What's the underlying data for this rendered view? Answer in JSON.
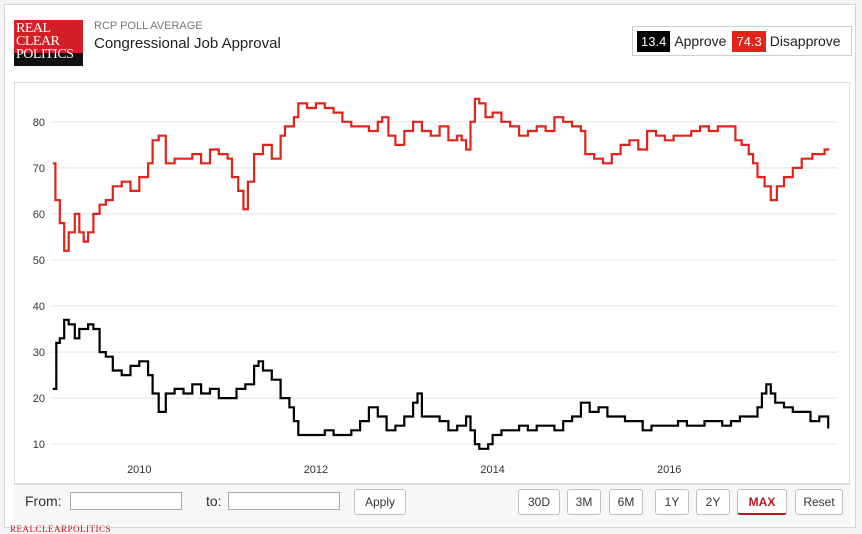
{
  "header": {
    "logo_lines": [
      "REAL",
      "CLEAR",
      "POLITICS"
    ],
    "kicker": "RCP POLL AVERAGE",
    "title": "Congressional Job Approval"
  },
  "legend": {
    "approve_value": "13.4",
    "approve_label": "Approve",
    "disapprove_value": "74.3",
    "disapprove_label": "Disapprove"
  },
  "controls": {
    "from_label": "From:",
    "to_label": "to:",
    "from_value": "",
    "to_value": "",
    "apply_label": "Apply",
    "ranges": [
      "30D",
      "3M",
      "6M",
      "1Y",
      "2Y",
      "MAX"
    ],
    "active_range": "MAX",
    "reset_label": "Reset"
  },
  "footer": {
    "brand": "REALCLEARPOLITICS"
  },
  "chart_data": {
    "type": "line",
    "title": "",
    "xlabel": "",
    "ylabel": "",
    "x_ticks": [
      "2010",
      "2012",
      "2014",
      "2016"
    ],
    "y_ticks": [
      10,
      20,
      30,
      40,
      50,
      60,
      70,
      80
    ],
    "ylim": [
      2,
      88
    ],
    "xlim": [
      2009.0,
      2017.9
    ],
    "grid": "horizontal",
    "series": [
      {
        "name": "Disapprove",
        "color": "#e2231a",
        "points": [
          [
            2009.02,
            71
          ],
          [
            2009.05,
            63
          ],
          [
            2009.1,
            58
          ],
          [
            2009.15,
            52
          ],
          [
            2009.2,
            56
          ],
          [
            2009.27,
            60
          ],
          [
            2009.32,
            56
          ],
          [
            2009.37,
            54
          ],
          [
            2009.42,
            56
          ],
          [
            2009.48,
            60
          ],
          [
            2009.55,
            62
          ],
          [
            2009.62,
            63
          ],
          [
            2009.7,
            66
          ],
          [
            2009.8,
            67
          ],
          [
            2009.9,
            65
          ],
          [
            2010.0,
            68
          ],
          [
            2010.1,
            71
          ],
          [
            2010.15,
            76
          ],
          [
            2010.22,
            77
          ],
          [
            2010.3,
            71
          ],
          [
            2010.4,
            72
          ],
          [
            2010.5,
            72
          ],
          [
            2010.6,
            73
          ],
          [
            2010.7,
            71
          ],
          [
            2010.8,
            74
          ],
          [
            2010.9,
            73
          ],
          [
            2011.0,
            72
          ],
          [
            2011.05,
            68
          ],
          [
            2011.12,
            65
          ],
          [
            2011.18,
            61
          ],
          [
            2011.23,
            67
          ],
          [
            2011.3,
            73
          ],
          [
            2011.4,
            75
          ],
          [
            2011.5,
            72
          ],
          [
            2011.6,
            77
          ],
          [
            2011.65,
            79
          ],
          [
            2011.75,
            81
          ],
          [
            2011.8,
            84
          ],
          [
            2011.9,
            83
          ],
          [
            2012.0,
            84
          ],
          [
            2012.1,
            83
          ],
          [
            2012.2,
            82
          ],
          [
            2012.3,
            80
          ],
          [
            2012.4,
            79
          ],
          [
            2012.5,
            79
          ],
          [
            2012.6,
            78
          ],
          [
            2012.7,
            80
          ],
          [
            2012.75,
            81
          ],
          [
            2012.82,
            77
          ],
          [
            2012.9,
            75
          ],
          [
            2013.0,
            78
          ],
          [
            2013.1,
            80
          ],
          [
            2013.2,
            78
          ],
          [
            2013.3,
            77
          ],
          [
            2013.4,
            79
          ],
          [
            2013.5,
            76
          ],
          [
            2013.6,
            77
          ],
          [
            2013.65,
            76
          ],
          [
            2013.7,
            74
          ],
          [
            2013.75,
            80
          ],
          [
            2013.8,
            85
          ],
          [
            2013.85,
            84
          ],
          [
            2013.92,
            81
          ],
          [
            2014.0,
            82
          ],
          [
            2014.1,
            80
          ],
          [
            2014.2,
            79
          ],
          [
            2014.3,
            77
          ],
          [
            2014.4,
            78
          ],
          [
            2014.5,
            79
          ],
          [
            2014.6,
            78
          ],
          [
            2014.7,
            81
          ],
          [
            2014.8,
            80
          ],
          [
            2014.9,
            79
          ],
          [
            2015.0,
            78
          ],
          [
            2015.05,
            73
          ],
          [
            2015.15,
            72
          ],
          [
            2015.25,
            71
          ],
          [
            2015.35,
            73
          ],
          [
            2015.45,
            75
          ],
          [
            2015.55,
            76
          ],
          [
            2015.65,
            74
          ],
          [
            2015.75,
            78
          ],
          [
            2015.85,
            77
          ],
          [
            2015.95,
            76
          ],
          [
            2016.05,
            77
          ],
          [
            2016.15,
            77
          ],
          [
            2016.25,
            78
          ],
          [
            2016.35,
            79
          ],
          [
            2016.45,
            78
          ],
          [
            2016.55,
            79
          ],
          [
            2016.65,
            79
          ],
          [
            2016.75,
            76
          ],
          [
            2016.82,
            75
          ],
          [
            2016.9,
            73
          ],
          [
            2016.95,
            71
          ],
          [
            2017.0,
            68
          ],
          [
            2017.08,
            66
          ],
          [
            2017.15,
            63
          ],
          [
            2017.22,
            66
          ],
          [
            2017.3,
            68
          ],
          [
            2017.4,
            70
          ],
          [
            2017.5,
            72
          ],
          [
            2017.55,
            72
          ],
          [
            2017.62,
            73
          ],
          [
            2017.7,
            73
          ],
          [
            2017.76,
            74
          ],
          [
            2017.8,
            74.3
          ]
        ]
      },
      {
        "name": "Approve",
        "color": "#000000",
        "points": [
          [
            2009.02,
            22
          ],
          [
            2009.06,
            32
          ],
          [
            2009.1,
            33
          ],
          [
            2009.15,
            37
          ],
          [
            2009.2,
            36
          ],
          [
            2009.27,
            33
          ],
          [
            2009.32,
            35
          ],
          [
            2009.37,
            35
          ],
          [
            2009.42,
            36
          ],
          [
            2009.48,
            35
          ],
          [
            2009.55,
            30
          ],
          [
            2009.62,
            29
          ],
          [
            2009.7,
            26
          ],
          [
            2009.8,
            25
          ],
          [
            2009.9,
            27
          ],
          [
            2010.0,
            28
          ],
          [
            2010.1,
            25
          ],
          [
            2010.15,
            21
          ],
          [
            2010.22,
            17
          ],
          [
            2010.3,
            21
          ],
          [
            2010.4,
            22
          ],
          [
            2010.5,
            21
          ],
          [
            2010.6,
            23
          ],
          [
            2010.7,
            21
          ],
          [
            2010.8,
            22
          ],
          [
            2010.9,
            20
          ],
          [
            2011.0,
            20
          ],
          [
            2011.1,
            22
          ],
          [
            2011.2,
            23
          ],
          [
            2011.3,
            27
          ],
          [
            2011.35,
            28
          ],
          [
            2011.4,
            26
          ],
          [
            2011.5,
            24
          ],
          [
            2011.6,
            20
          ],
          [
            2011.7,
            18
          ],
          [
            2011.75,
            15
          ],
          [
            2011.8,
            12
          ],
          [
            2011.9,
            12
          ],
          [
            2012.0,
            12
          ],
          [
            2012.1,
            13
          ],
          [
            2012.2,
            12
          ],
          [
            2012.3,
            12
          ],
          [
            2012.4,
            13
          ],
          [
            2012.5,
            15
          ],
          [
            2012.6,
            18
          ],
          [
            2012.7,
            16
          ],
          [
            2012.8,
            13
          ],
          [
            2012.9,
            14
          ],
          [
            2013.0,
            16
          ],
          [
            2013.1,
            19
          ],
          [
            2013.15,
            21
          ],
          [
            2013.2,
            16
          ],
          [
            2013.3,
            16
          ],
          [
            2013.4,
            15
          ],
          [
            2013.5,
            13
          ],
          [
            2013.6,
            14
          ],
          [
            2013.7,
            16
          ],
          [
            2013.75,
            13
          ],
          [
            2013.8,
            10
          ],
          [
            2013.85,
            9
          ],
          [
            2013.95,
            10
          ],
          [
            2014.0,
            12
          ],
          [
            2014.1,
            13
          ],
          [
            2014.2,
            13
          ],
          [
            2014.3,
            14
          ],
          [
            2014.4,
            13
          ],
          [
            2014.5,
            14
          ],
          [
            2014.6,
            14
          ],
          [
            2014.7,
            13
          ],
          [
            2014.8,
            15
          ],
          [
            2014.9,
            16
          ],
          [
            2015.0,
            19
          ],
          [
            2015.1,
            17
          ],
          [
            2015.2,
            18
          ],
          [
            2015.3,
            16
          ],
          [
            2015.4,
            16
          ],
          [
            2015.5,
            15
          ],
          [
            2015.6,
            15
          ],
          [
            2015.7,
            13
          ],
          [
            2015.8,
            14
          ],
          [
            2015.9,
            14
          ],
          [
            2016.0,
            14
          ],
          [
            2016.1,
            15
          ],
          [
            2016.2,
            14
          ],
          [
            2016.3,
            14
          ],
          [
            2016.4,
            15
          ],
          [
            2016.5,
            15
          ],
          [
            2016.6,
            14
          ],
          [
            2016.7,
            15
          ],
          [
            2016.8,
            16
          ],
          [
            2016.9,
            16
          ],
          [
            2017.0,
            18
          ],
          [
            2017.05,
            21
          ],
          [
            2017.1,
            23
          ],
          [
            2017.15,
            21
          ],
          [
            2017.2,
            19
          ],
          [
            2017.3,
            18
          ],
          [
            2017.4,
            17
          ],
          [
            2017.5,
            17
          ],
          [
            2017.6,
            15
          ],
          [
            2017.7,
            16
          ],
          [
            2017.8,
            13.4
          ]
        ]
      }
    ]
  }
}
